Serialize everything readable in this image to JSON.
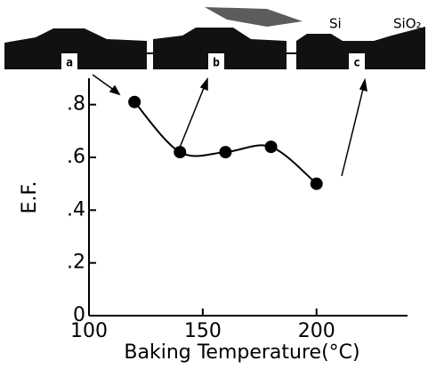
{
  "chart_data": {
    "type": "line",
    "x_label": "Baking Temperature(°C)",
    "y_label": "E.F.",
    "x": [
      120,
      140,
      160,
      180,
      200
    ],
    "series": [
      {
        "color": "#000000",
        "values": [
          0.81,
          0.62,
          0.62,
          0.64,
          0.5
        ]
      }
    ],
    "xlim": [
      100,
      240
    ],
    "xticks": [
      100,
      150,
      200
    ],
    "ylim": [
      0,
      0.9
    ],
    "yticks": [
      0,
      {
        "value": 0.2,
        "label": ".2"
      },
      {
        "value": 0.4,
        "label": ".4"
      },
      {
        "value": 0.6,
        "label": ".6"
      },
      {
        "value": 0.8,
        "label": ".8"
      }
    ],
    "annotations": [
      "a",
      "b",
      "c",
      "Si",
      "SiO₂"
    ]
  }
}
